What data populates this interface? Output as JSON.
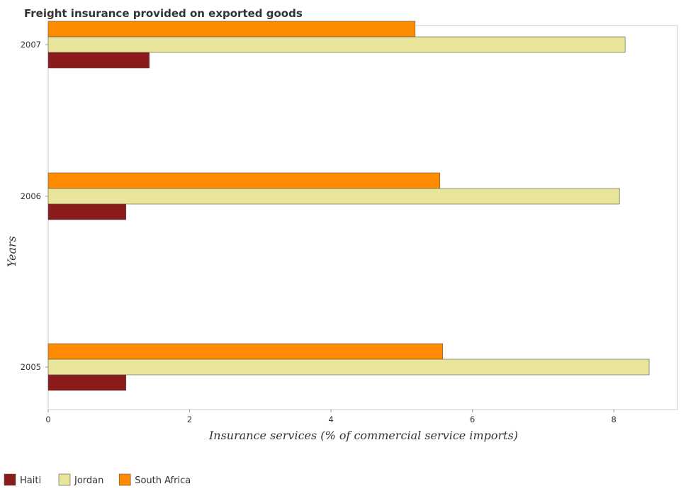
{
  "chart_data": {
    "type": "bar",
    "orientation": "horizontal",
    "title": "Freight insurance provided on exported goods",
    "xlabel": "Insurance services (% of commercial service imports)",
    "ylabel": "Years",
    "categories": [
      "2005",
      "2006",
      "2007"
    ],
    "series": [
      {
        "name": "Haiti",
        "color": "#8b1a1a",
        "values": [
          1.1,
          1.1,
          1.43
        ]
      },
      {
        "name": "Jordan",
        "color": "#e8e49a",
        "values": [
          8.5,
          8.08,
          8.16
        ]
      },
      {
        "name": "South Africa",
        "color": "#ff8c00",
        "values": [
          5.58,
          5.54,
          5.19
        ]
      }
    ],
    "xlim": [
      0,
      8.9
    ],
    "xticks": [
      "0",
      "2",
      "4",
      "6",
      "8"
    ],
    "grid": false,
    "legend_position": "bottom-left"
  }
}
